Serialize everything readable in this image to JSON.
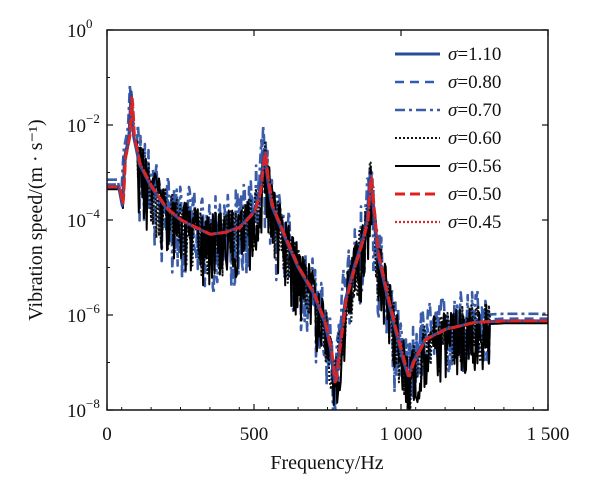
{
  "chart_data": {
    "type": "line",
    "xlabel": "Frequency/Hz",
    "ylabel": "Vibration speed/(m · s⁻¹)",
    "xlim": [
      0,
      1500
    ],
    "ylim_log10": [
      -8,
      0
    ],
    "y_scale": "log",
    "x_ticks": [
      0,
      500,
      1000,
      1500
    ],
    "x_tick_labels": [
      "0",
      "500",
      "1 000",
      "1 500"
    ],
    "y_ticks": [
      -8,
      -6,
      -4,
      -2,
      0
    ],
    "y_tick_labels": [
      "10",
      "10",
      "10",
      "10",
      "10"
    ],
    "y_tick_exponents": [
      "−8",
      "−6",
      "−4",
      "−2",
      "0"
    ],
    "legend_position": "upper-right",
    "legend_symbol": "σ",
    "series": [
      {
        "name": "=1.10",
        "color": "#2a4b9b",
        "dash": "solid",
        "width": 3.0,
        "x": [
          0,
          40,
          52,
          60,
          75,
          82,
          90,
          110,
          150,
          200,
          250,
          300,
          350,
          400,
          450,
          500,
          520,
          535,
          545,
          560,
          600,
          650,
          700,
          740,
          760,
          775,
          790,
          810,
          840,
          870,
          885,
          895,
          905,
          920,
          950,
          980,
          1010,
          1025,
          1040,
          1080,
          1150,
          1250,
          1350,
          1500
        ],
        "y": [
          0.0005,
          0.0005,
          0.0002,
          0.002,
          0.006,
          0.05,
          0.006,
          0.0015,
          0.0005,
          0.00018,
          0.0001,
          7e-05,
          5e-05,
          5.5e-05,
          7e-05,
          0.00015,
          0.0004,
          0.003,
          0.0008,
          0.0002,
          5e-05,
          1e-05,
          3e-06,
          7e-07,
          2e-07,
          3.5e-08,
          2e-07,
          2e-06,
          1e-05,
          4e-05,
          0.0001,
          0.001,
          0.0002,
          2e-05,
          3e-06,
          5e-07,
          1e-07,
          5e-08,
          1e-07,
          3e-07,
          5e-07,
          7e-07,
          7.5e-07,
          7.5e-07
        ]
      },
      {
        "name": "=0.80",
        "color": "#2f5db4",
        "dash": "9,6",
        "width": 2.4,
        "noise": 0.45,
        "xshift": 0,
        "yshift": 0.05
      },
      {
        "name": "=0.70",
        "color": "#3b5ca8",
        "dash": "10,4,3,4",
        "width": 2.6,
        "noise": 0.9,
        "xshift": -4,
        "yshift": 0.15
      },
      {
        "name": "=0.60",
        "color": "#111111",
        "dash": "2,2",
        "width": 2.0,
        "noise": 0.6,
        "xshift": 1,
        "yshift": 0.0
      },
      {
        "name": "=0.56",
        "color": "#000000",
        "dash": "solid",
        "width": 2.0,
        "noise": 0.7,
        "xshift": 2,
        "yshift": -0.05
      },
      {
        "name": "=0.50",
        "color": "#e02020",
        "dash": "10,5",
        "width": 3.0,
        "noise": 0.0,
        "xshift": 3,
        "yshift": 0.0
      },
      {
        "name": "=0.45",
        "color": "#d42a2a",
        "dash": "2,2",
        "width": 2.2,
        "noise": 0.0,
        "xshift": 4,
        "yshift": 0.0
      }
    ]
  }
}
